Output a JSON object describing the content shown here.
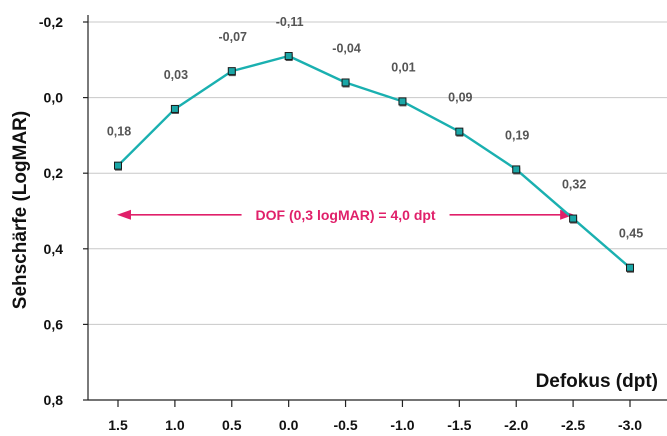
{
  "chart_data": {
    "type": "line",
    "xlabel": "Defokus (dpt)",
    "ylabel": "Sehschärfe (LogMAR)",
    "x": [
      1.5,
      1.0,
      0.5,
      0.0,
      -0.5,
      -1.0,
      -1.5,
      -2.0,
      -2.5,
      -3.0
    ],
    "x_tick_labels": [
      "1.5",
      "1.0",
      "0.5",
      "0.0",
      "-0.5",
      "-1.0",
      "-1.5",
      "-2.0",
      "-2.5",
      "-3.0"
    ],
    "y_ticks": [
      -0.2,
      0.0,
      0.2,
      0.4,
      0.6,
      0.8
    ],
    "y_tick_labels": [
      "-0,2",
      "0,0",
      "0,2",
      "0,4",
      "0,6",
      "0,8"
    ],
    "xlim": [
      1.5,
      -3.0
    ],
    "ylim": [
      -0.2,
      0.8
    ],
    "y_inverted": true,
    "grid": "horizontal",
    "series": [
      {
        "values": [
          0.18,
          0.03,
          -0.07,
          -0.11,
          -0.04,
          0.01,
          0.09,
          0.19,
          0.32,
          0.45
        ],
        "labels": [
          "0,18",
          "0,03",
          "-0,07",
          "-0,11",
          "-0,04",
          "0,01",
          "0,09",
          "0,19",
          "0,32",
          "0,45"
        ],
        "color": "#1ab0b0",
        "marker_color": "#1aa6a6"
      }
    ],
    "annotations": [
      {
        "text": "DOF (0,3 logMAR) = 4,0 dpt",
        "x_from": 1.5,
        "x_to": -2.5,
        "y": 0.31,
        "color": "#e0206a"
      }
    ]
  }
}
